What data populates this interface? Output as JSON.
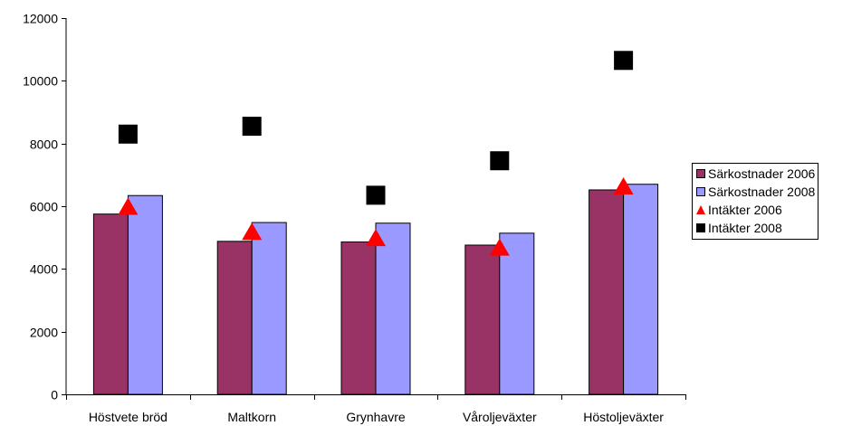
{
  "chart_data": {
    "type": "bar",
    "title": "",
    "xlabel": "",
    "ylabel": "",
    "ylim": [
      0,
      12000
    ],
    "yticks": [
      0,
      2000,
      4000,
      6000,
      8000,
      10000,
      12000
    ],
    "ytick_labels": [
      "0",
      "2000",
      "4000",
      "6000",
      "8000",
      "10000",
      "12000"
    ],
    "grid": false,
    "legend_position": "right",
    "categories": [
      "Höstvete bröd",
      "Maltkorn",
      "Grynhavre",
      "Våroljeväxter",
      "Höstoljeväxter"
    ],
    "series": [
      {
        "name": "Särkostnader 2006",
        "kind": "bar",
        "color": "#993366",
        "values": [
          5750,
          4880,
          4860,
          4760,
          6520
        ]
      },
      {
        "name": "Särkostnader 2008",
        "kind": "bar",
        "color": "#9999FF",
        "values": [
          6340,
          5480,
          5460,
          5140,
          6700
        ]
      },
      {
        "name": "Intäkter 2006",
        "kind": "marker",
        "marker": "triangle",
        "color": "#FF0000",
        "values": [
          6000,
          5200,
          5000,
          4700,
          6650
        ]
      },
      {
        "name": "Intäkter 2008",
        "kind": "marker",
        "marker": "square",
        "color": "#000000",
        "values": [
          8300,
          8550,
          6350,
          7450,
          10650
        ]
      }
    ]
  }
}
